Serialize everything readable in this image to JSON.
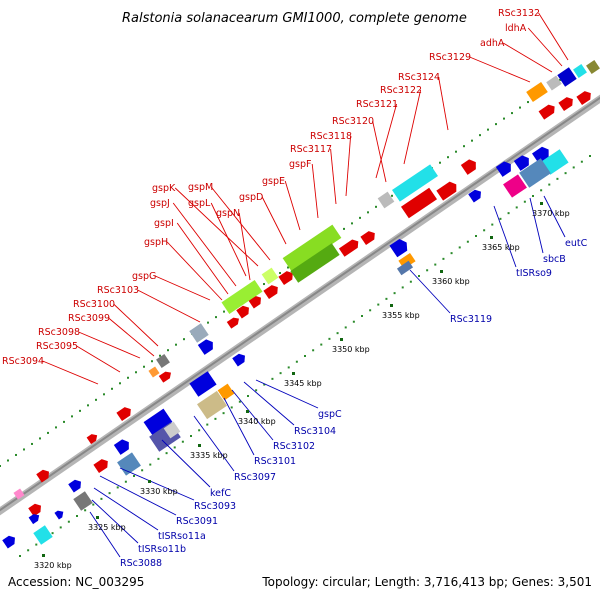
{
  "title": "Ralstonia solanacearum GMI1000, complete genome",
  "footer": {
    "accession": "Accession: NC_003295",
    "summary": "Topology: circular; Length: 3,716,413 bp; Genes: 3,501"
  },
  "colors": {
    "top_strand": "#e00000",
    "bottom_strand": "#0000dd",
    "top_label": "#cc0000",
    "bottom_label": "#0000aa",
    "backbone": "#999999",
    "dots": "#2a8a2a"
  },
  "ticks": [
    "3320 kbp",
    "3325 kbp",
    "3330 kbp",
    "3335 kbp",
    "3340 kbp",
    "3345 kbp",
    "3350 kbp",
    "3355 kbp",
    "3360 kbp",
    "3365 kbp",
    "3370 kbp"
  ],
  "top_labels": [
    "RSc3132",
    "ldhA",
    "adhA",
    "RSc3129",
    "RSc3124",
    "RSc3122",
    "RSc3121",
    "RSc3120",
    "RSc3118",
    "RSc3117",
    "gspF",
    "gspE",
    "gspD",
    "gspM",
    "gspK",
    "gspL",
    "gspN",
    "gspJ",
    "gspI",
    "gspH",
    "gspG",
    "RSc3103",
    "RSc3100",
    "RSc3099",
    "RSc3098",
    "RSc3095",
    "RSc3094"
  ],
  "bottom_labels": [
    "eutC",
    "sbcB",
    "tISRso9",
    "RSc3119",
    "gspC",
    "RSc3104",
    "RSc3102",
    "RSc3101",
    "RSc3097",
    "kefC",
    "RSc3093",
    "RSc3091",
    "tISRso11a",
    "tISRso11b",
    "RSc3088"
  ]
}
